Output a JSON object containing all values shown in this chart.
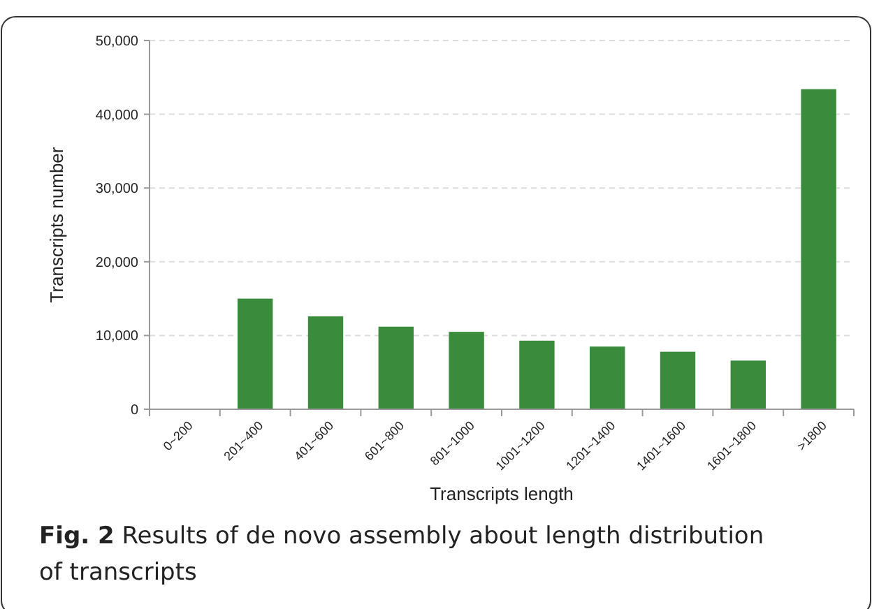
{
  "chart_data": {
    "type": "bar",
    "xlabel": "Transcripts length",
    "ylabel": "Transcripts number",
    "categories": [
      "0~200",
      "201~400",
      "401~600",
      "601~800",
      "801~1000",
      "1001~1200",
      "1201~1400",
      "1401~1600",
      "1601~1800",
      ">1800"
    ],
    "values": [
      0,
      15000,
      12600,
      11200,
      10500,
      9300,
      8500,
      7800,
      6600,
      43400
    ],
    "color": "#3a8c3c",
    "ylim": [
      0,
      50000
    ],
    "yticks": [
      {
        "value": 0,
        "label": "0"
      },
      {
        "value": 10000,
        "label": "10,000"
      },
      {
        "value": 20000,
        "label": "20,000"
      },
      {
        "value": 30000,
        "label": "30,000"
      },
      {
        "value": 40000,
        "label": "40,000"
      },
      {
        "value": 50000,
        "label": "50,000"
      }
    ],
    "grid": "y",
    "annotations": [
      "Fig. 2  Results of de novo assembly about length distribution of transcripts"
    ]
  }
}
